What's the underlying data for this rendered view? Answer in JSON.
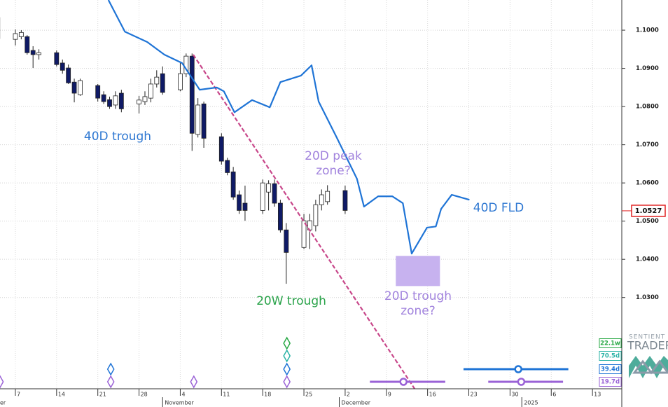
{
  "chart_data": {
    "type": "candlestick",
    "candles": {
      "x": [
        3,
        6,
        7,
        8,
        9,
        10,
        13,
        14,
        15,
        16,
        17,
        20,
        21,
        22,
        23,
        24,
        27,
        28,
        29,
        30,
        31,
        34,
        35,
        36,
        37,
        38,
        41,
        42,
        43,
        44,
        45,
        48,
        49,
        50,
        51,
        52,
        55,
        56,
        57,
        58,
        59,
        62
      ],
      "open": [
        1.1033,
        1.0976,
        1.0983,
        1.0983,
        1.0947,
        1.0936,
        1.0941,
        1.0914,
        1.0901,
        1.0864,
        1.0831,
        1.0855,
        1.0831,
        1.0818,
        1.0804,
        1.0835,
        1.0807,
        1.0813,
        1.0822,
        1.0859,
        1.0886,
        1.0844,
        1.0886,
        1.0932,
        1.0727,
        1.0807,
        1.0721,
        1.0659,
        1.0629,
        1.0569,
        1.0547,
        1.0528,
        1.0576,
        1.0598,
        1.0547,
        1.0477,
        1.0431,
        1.0477,
        1.0488,
        1.0543,
        1.0551,
        1.058
      ],
      "high": [
        1.1039,
        1.1002,
        1.1,
        1.0987,
        1.0958,
        1.095,
        1.0947,
        1.0923,
        1.091,
        1.0873,
        1.0873,
        1.0859,
        1.084,
        1.0826,
        1.084,
        1.0844,
        1.0828,
        1.084,
        1.0873,
        1.0895,
        1.0905,
        1.0914,
        1.0939,
        1.0939,
        1.0822,
        1.0813,
        1.073,
        1.0666,
        1.0642,
        1.058,
        1.0593,
        1.0609,
        1.0607,
        1.0609,
        1.0556,
        1.0495,
        1.0519,
        1.0519,
        1.0556,
        1.0583,
        1.0594,
        1.0593
      ],
      "low": [
        1.0972,
        1.096,
        1.0976,
        1.0936,
        1.0901,
        1.0923,
        1.0905,
        1.0886,
        1.0859,
        1.0811,
        1.0828,
        1.0813,
        1.0807,
        1.0794,
        1.0794,
        1.0785,
        1.0782,
        1.0804,
        1.0811,
        1.085,
        1.0831,
        1.084,
        1.0877,
        1.0684,
        1.0719,
        1.0692,
        1.0648,
        1.062,
        1.0556,
        1.0519,
        1.0501,
        1.0519,
        1.0528,
        1.0538,
        1.047,
        1.0336,
        1.0427,
        1.0427,
        1.0473,
        1.0528,
        1.0543,
        1.0519
      ],
      "close": [
        1.0978,
        1.0991,
        1.0994,
        1.0941,
        1.0936,
        1.0941,
        1.091,
        1.0895,
        1.0862,
        1.0835,
        1.0868,
        1.0822,
        1.0813,
        1.08,
        1.0828,
        1.0794,
        1.0817,
        1.0826,
        1.0859,
        1.0877,
        1.0837,
        1.0886,
        1.0932,
        1.073,
        1.0804,
        1.0717,
        1.0657,
        1.0627,
        1.0563,
        1.0528,
        1.0528,
        1.06,
        1.0598,
        1.0547,
        1.0477,
        1.0418,
        1.0501,
        1.0501,
        1.0543,
        1.0569,
        1.0578,
        1.0528
      ],
      "up_color": "#ffffff",
      "down_color": "#0f1a66",
      "edge_color": "#222222"
    },
    "fld": {
      "x": [
        21.8,
        24.6,
        28.4,
        31.3,
        34.3,
        37.3,
        40.2,
        41.4,
        43.2,
        46.2,
        49.2,
        51.0,
        54.5,
        56.3,
        57.5,
        60.5,
        64.0,
        65.2,
        67.6,
        70.0,
        71.8,
        73.3,
        75.9,
        77.4,
        78.3,
        80.1,
        83.1
      ],
      "values": [
        1.1079,
        1.0996,
        1.0969,
        1.0936,
        1.0914,
        1.0844,
        1.085,
        1.084,
        1.0785,
        1.0817,
        1.0798,
        1.0864,
        1.0881,
        1.0908,
        1.0813,
        1.0721,
        1.0611,
        1.0538,
        1.0565,
        1.0565,
        1.0547,
        1.0415,
        1.0483,
        1.0486,
        1.0532,
        1.0569,
        1.0556
      ],
      "color": "#1f74d6"
    },
    "trend_line": {
      "x": [
        36.2,
        73.8
      ],
      "values": [
        1.0936,
        1.0061
      ],
      "color": "#c8478a"
    },
    "zone": {
      "x": [
        70.6,
        78.1
      ],
      "y": [
        1.0409,
        1.033
      ],
      "color": "#c7b2ef"
    },
    "annotations": [
      {
        "lines": [
          "40D trough"
        ],
        "color": "#2f78d2"
      },
      {
        "lines": [
          "20D peak",
          "zone?"
        ],
        "color": "#a183dd"
      },
      {
        "lines": [
          "20W trough"
        ],
        "color": "#2aa34a"
      },
      {
        "lines": [
          "20D trough",
          "zone?"
        ],
        "color": "#a183dd"
      },
      {
        "lines": [
          "40D FLD"
        ],
        "color": "#2f78d2"
      }
    ],
    "ylim": [
      1.0061,
      1.1079
    ],
    "yticks": [
      {
        "value": 1.03,
        "label": "1.0300"
      },
      {
        "value": 1.04,
        "label": "1.0400"
      },
      {
        "value": 1.05,
        "label": "1.0500"
      },
      {
        "value": 1.06,
        "label": "1.0600"
      },
      {
        "value": 1.07,
        "label": "1.0700"
      },
      {
        "value": 1.08,
        "label": "1.0800"
      },
      {
        "value": 1.09,
        "label": "1.0900"
      },
      {
        "value": 1.1,
        "label": "1.1000"
      }
    ],
    "last_price": {
      "value": 1.0527,
      "label": "1.0527"
    },
    "xlim": [
      3.4,
      109
    ],
    "xticks": [
      {
        "value": 6,
        "label": "7"
      },
      {
        "value": 13,
        "label": "14"
      },
      {
        "value": 20,
        "label": "21"
      },
      {
        "value": 27,
        "label": "28"
      },
      {
        "value": 34,
        "label": "4"
      },
      {
        "value": 41,
        "label": "11"
      },
      {
        "value": 48,
        "label": "18"
      },
      {
        "value": 55,
        "label": "25"
      },
      {
        "value": 62,
        "label": "2"
      },
      {
        "value": 69,
        "label": "9"
      },
      {
        "value": 76,
        "label": "16"
      },
      {
        "value": 83,
        "label": "23"
      },
      {
        "value": 90,
        "label": "30"
      },
      {
        "value": 97,
        "label": "6"
      },
      {
        "value": 104,
        "label": "13"
      }
    ],
    "month_ticks": [
      {
        "value": 0,
        "label": "er"
      },
      {
        "value": 31,
        "label": "November"
      },
      {
        "value": 61,
        "label": "December"
      },
      {
        "value": 92,
        "label": "2025"
      }
    ],
    "grid": true,
    "cycles": [
      {
        "label": "22.1w",
        "color": "#27a844"
      },
      {
        "label": "70.5d",
        "color": "#2bb3a6"
      },
      {
        "label": "39.4d",
        "color": "#1f74d6"
      },
      {
        "label": "19.7d",
        "color": "#9a62d6"
      }
    ],
    "cycle_diamonds": [
      {
        "x": 3.4,
        "cycle": 3
      },
      {
        "x": 22.2,
        "cycle": 2
      },
      {
        "x": 22.2,
        "cycle": 3
      },
      {
        "x": 36.3,
        "cycle": 3
      },
      {
        "x": 52.1,
        "cycle": 0
      },
      {
        "x": 52.1,
        "cycle": 1
      },
      {
        "x": 52.1,
        "cycle": 2
      },
      {
        "x": 52.1,
        "cycle": 3
      }
    ],
    "cycle_projections": [
      {
        "cycle": 2,
        "x": [
          82.1,
          99.9
        ],
        "center": 91.4
      },
      {
        "cycle": 3,
        "x": [
          66.2,
          79.0
        ],
        "center": 71.9
      },
      {
        "cycle": 3,
        "x": [
          86.3,
          99.0
        ],
        "center": 91.9
      }
    ],
    "branding": [
      "SENTIENT",
      "TRADER"
    ]
  }
}
